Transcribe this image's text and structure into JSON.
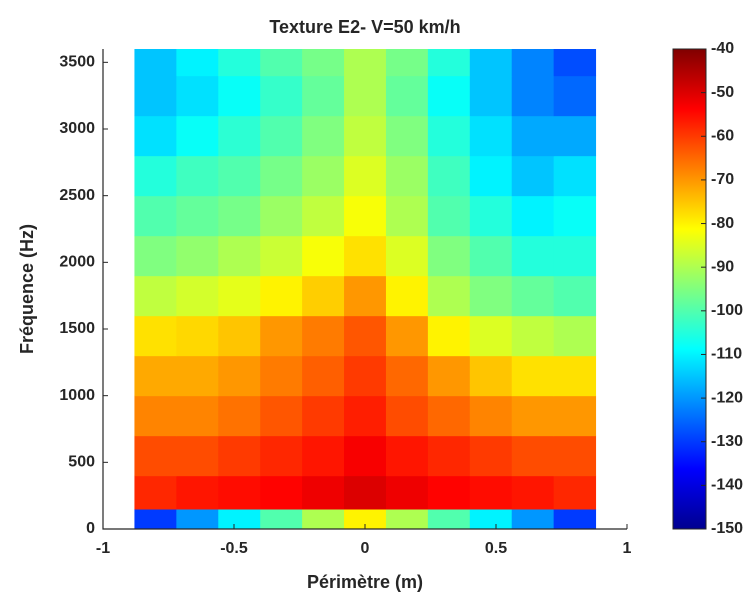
{
  "chart_data": {
    "type": "heatmap",
    "title": "Texture E2- V=50 km/h",
    "x_label": "Périmètre (m)",
    "y_label": "Fréquence (Hz)",
    "colormap": "jet",
    "xbins": [
      -0.88,
      -0.72,
      -0.56,
      -0.4,
      -0.24,
      -0.08,
      0.08,
      0.24,
      0.4,
      0.56,
      0.72,
      0.88
    ],
    "ybins": [
      0,
      150,
      400,
      700,
      1000,
      1300,
      1600,
      1900,
      2200,
      2500,
      2800,
      3100,
      3400,
      3600
    ],
    "values": [
      [
        -130,
        -120,
        -110,
        -100,
        -90,
        -80,
        -90,
        -100,
        -110,
        -120,
        -130
      ],
      [
        -58,
        -56,
        -55,
        -54,
        -52,
        -50,
        -52,
        -54,
        -55,
        -56,
        -58
      ],
      [
        -62,
        -62,
        -60,
        -58,
        -56,
        -53,
        -56,
        -58,
        -60,
        -62,
        -62
      ],
      [
        -68,
        -68,
        -66,
        -63,
        -60,
        -57,
        -62,
        -65,
        -68,
        -70,
        -70
      ],
      [
        -72,
        -72,
        -70,
        -67,
        -64,
        -60,
        -65,
        -70,
        -75,
        -78,
        -78
      ],
      [
        -78,
        -77,
        -75,
        -70,
        -67,
        -63,
        -70,
        -80,
        -85,
        -88,
        -90
      ],
      [
        -88,
        -86,
        -84,
        -80,
        -76,
        -70,
        -80,
        -90,
        -95,
        -98,
        -100
      ],
      [
        -95,
        -93,
        -90,
        -87,
        -82,
        -78,
        -85,
        -95,
        -100,
        -105,
        -105
      ],
      [
        -100,
        -98,
        -96,
        -92,
        -88,
        -82,
        -90,
        -100,
        -105,
        -110,
        -108
      ],
      [
        -105,
        -102,
        -100,
        -96,
        -92,
        -85,
        -92,
        -102,
        -110,
        -115,
        -112
      ],
      [
        -112,
        -108,
        -104,
        -100,
        -95,
        -88,
        -95,
        -105,
        -112,
        -118,
        -118
      ],
      [
        -115,
        -112,
        -108,
        -103,
        -98,
        -90,
        -98,
        -108,
        -115,
        -122,
        -125
      ],
      [
        -115,
        -110,
        -105,
        -100,
        -96,
        -90,
        -96,
        -105,
        -115,
        -122,
        -128
      ]
    ],
    "xlim": [
      -1,
      1
    ],
    "xticks": [
      -1,
      -0.5,
      0,
      0.5,
      1
    ],
    "ylim": [
      0,
      3600
    ],
    "yticks": [
      0,
      500,
      1000,
      1500,
      2000,
      2500,
      3000,
      3500
    ],
    "clim": [
      -150,
      -40
    ],
    "colorbar_ticks": [
      -40,
      -50,
      -60,
      -70,
      -80,
      -90,
      -100,
      -110,
      -120,
      -130,
      -140,
      -150
    ]
  }
}
